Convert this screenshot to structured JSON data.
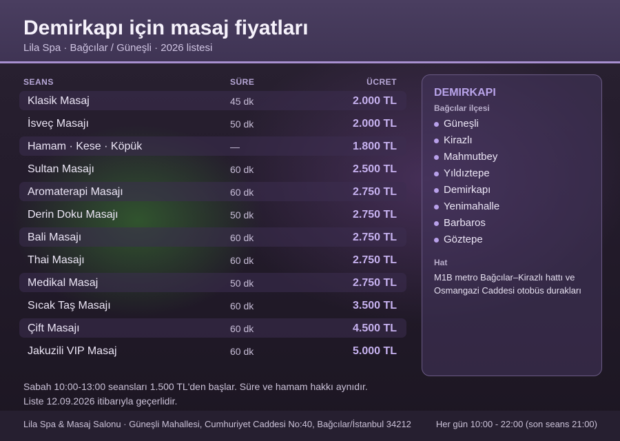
{
  "header": {
    "title": "Demirkapı için masaj fiyatları",
    "subtitle": "Lila Spa · Bağcılar / Güneşli · 2026 listesi"
  },
  "table": {
    "columns": [
      "SEANS",
      "SÜRE",
      "ÜCRET"
    ],
    "rows": [
      {
        "name": "Klasik Masaj",
        "duration": "45 dk",
        "price": "2.000 TL"
      },
      {
        "name": "İsveç Masajı",
        "duration": "50 dk",
        "price": "2.000 TL"
      },
      {
        "name": "Hamam · Kese · Köpük",
        "duration": "—",
        "price": "1.800 TL"
      },
      {
        "name": "Sultan Masajı",
        "duration": "60 dk",
        "price": "2.500 TL"
      },
      {
        "name": "Aromaterapi Masajı",
        "duration": "60 dk",
        "price": "2.750 TL"
      },
      {
        "name": "Derin Doku Masajı",
        "duration": "50 dk",
        "price": "2.750 TL"
      },
      {
        "name": "Bali Masajı",
        "duration": "60 dk",
        "price": "2.750 TL"
      },
      {
        "name": "Thai Masajı",
        "duration": "60 dk",
        "price": "2.750 TL"
      },
      {
        "name": "Medikal Masaj",
        "duration": "50 dk",
        "price": "2.750 TL"
      },
      {
        "name": "Sıcak Taş Masajı",
        "duration": "60 dk",
        "price": "3.500 TL"
      },
      {
        "name": "Çift Masajı",
        "duration": "60 dk",
        "price": "4.500 TL"
      },
      {
        "name": "Jakuzili VIP Masaj",
        "duration": "60 dk",
        "price": "5.000 TL"
      }
    ]
  },
  "note": {
    "line1": "Sabah 10:00-13:00 seansları 1.500 TL'den başlar. Süre ve hamam hakkı aynıdır.",
    "line2": "Liste 12.09.2026 itibarıyla geçerlidir."
  },
  "panel": {
    "title": "DEMIRKAPI",
    "subtitle": "Bağcılar ilçesi",
    "neighborhoods": [
      "Güneşli",
      "Kirazlı",
      "Mahmutbey",
      "Yıldıztepe",
      "Demirkapı",
      "Yenimahalle",
      "Barbaros",
      "Göztepe"
    ],
    "transport_label": "Hat",
    "transport_text": "M1B metro Bağcılar–Kirazlı hattı ve Osmangazi Caddesi otobüs durakları"
  },
  "footer": {
    "address": "Lila Spa & Masaj Salonu · Güneşli Mahallesi, Cumhuriyet Caddesi No:40, Bağcılar/İstanbul 34212",
    "hours": "Her gün 10:00 - 22:00 (son seans 21:00)"
  },
  "colors": {
    "accent": "#a890d0",
    "price": "#c7b2f0",
    "header_bg": "#463a5c"
  }
}
